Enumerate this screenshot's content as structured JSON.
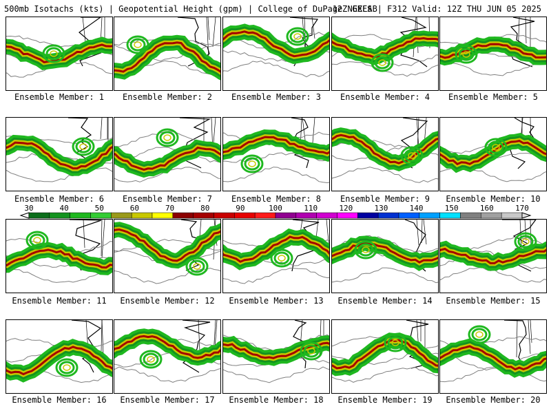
{
  "header": {
    "left": "500mb Isotachs (kts) | Geopotential Height (gpm) | College of DuPage NEXLAB",
    "right": "12Z GEFS | F312 Valid: 12Z THU JUN 05 2025"
  },
  "colorbar": {
    "labels": [
      "30",
      "40",
      "50",
      "60",
      "70",
      "80",
      "90",
      "100",
      "110",
      "120",
      "130",
      "140",
      "150",
      "160",
      "170"
    ],
    "colors": [
      "#0b6e1a",
      "#13931f",
      "#1fb81f",
      "#33cc33",
      "#9a9a1a",
      "#c8c800",
      "#ffff00",
      "#8b0000",
      "#a50000",
      "#c80000",
      "#e60000",
      "#ff1a1a",
      "#900090",
      "#b000b0",
      "#d000d0",
      "#ff00ff",
      "#0000a0",
      "#0030d0",
      "#0060ff",
      "#00a0ff",
      "#00e0ff",
      "#808080",
      "#a0a0a0",
      "#c8c8c8"
    ]
  },
  "panels": [
    {
      "caption": "Ensemble Member: 1"
    },
    {
      "caption": "Ensemble Member: 2"
    },
    {
      "caption": "Ensemble Member: 3"
    },
    {
      "caption": "Ensemble Member: 4"
    },
    {
      "caption": "Ensemble Member: 5"
    },
    {
      "caption": "Ensemble Member: 6"
    },
    {
      "caption": "Ensemble Member: 7"
    },
    {
      "caption": "Ensemble Member: 8"
    },
    {
      "caption": "Ensemble Member: 9"
    },
    {
      "caption": "Ensemble Member: 10"
    },
    {
      "caption": "Ensemble Member: 11"
    },
    {
      "caption": "Ensemble Member: 12"
    },
    {
      "caption": "Ensemble Member: 13"
    },
    {
      "caption": "Ensemble Member: 14"
    },
    {
      "caption": "Ensemble Member: 15"
    },
    {
      "caption": "Ensemble Member: 16"
    },
    {
      "caption": "Ensemble Member: 17"
    },
    {
      "caption": "Ensemble Member: 18"
    },
    {
      "caption": "Ensemble Member: 19"
    },
    {
      "caption": "Ensemble Member: 20"
    }
  ]
}
